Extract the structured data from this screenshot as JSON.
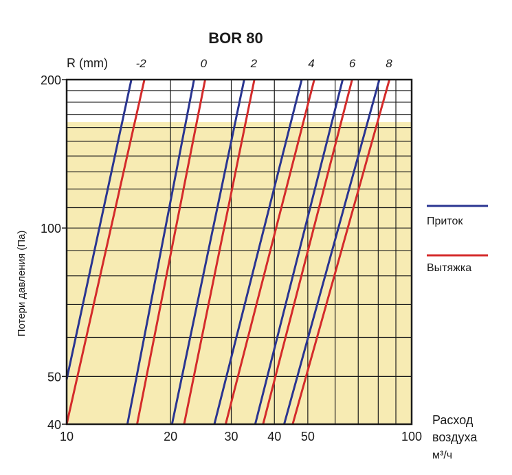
{
  "chart_data": {
    "type": "line",
    "title": "BOR 80",
    "xlabel": [
      "Расход",
      "воздуха",
      "м³/ч"
    ],
    "ylabel": "Потери давления (Па)",
    "x_scale": "log",
    "y_scale": "log",
    "xlim": [
      10,
      100
    ],
    "ylim": [
      40,
      200
    ],
    "x_ticks": [
      "10",
      "20",
      "30",
      "40",
      "50",
      "100"
    ],
    "x_tick_values": [
      10,
      20,
      30,
      40,
      50,
      100
    ],
    "y_ticks": [
      "200",
      "100",
      "50",
      "40"
    ],
    "y_tick_values": [
      200,
      100,
      50,
      40
    ],
    "grid": true,
    "highlight_region": {
      "y_range": [
        40,
        164
      ],
      "color": "#f7ebb3"
    },
    "r_axis": {
      "label": "R (mm)",
      "ticks": [
        "-2",
        "0",
        "2",
        "4",
        "6",
        "8"
      ]
    },
    "legend": {
      "position": "right",
      "entries": [
        {
          "name": "Приток",
          "color": "#2a3591"
        },
        {
          "name": "Вытяжка",
          "color": "#d42b2b"
        }
      ]
    },
    "series": [
      {
        "name": "Приток",
        "r": "-2",
        "color": "#2a3591",
        "points": [
          [
            10,
            49.3
          ],
          [
            15.4,
            200
          ]
        ]
      },
      {
        "name": "Приток",
        "r": "0",
        "color": "#2a3591",
        "points": [
          [
            15.0,
            40
          ],
          [
            23.4,
            200
          ]
        ]
      },
      {
        "name": "Приток",
        "r": "2",
        "color": "#2a3591",
        "points": [
          [
            20.2,
            40
          ],
          [
            32.7,
            200
          ]
        ]
      },
      {
        "name": "Приток",
        "r": "4",
        "color": "#2a3591",
        "points": [
          [
            26.8,
            40
          ],
          [
            48.0,
            200
          ]
        ]
      },
      {
        "name": "Приток",
        "r": "6",
        "color": "#2a3591",
        "points": [
          [
            35.2,
            40
          ],
          [
            63.1,
            200
          ]
        ]
      },
      {
        "name": "Приток",
        "r": "8",
        "color": "#2a3591",
        "points": [
          [
            42.7,
            40
          ],
          [
            80.6,
            200
          ]
        ]
      },
      {
        "name": "Вытяжка",
        "r": "-2",
        "color": "#d42b2b",
        "points": [
          [
            10,
            40
          ],
          [
            16.8,
            200
          ]
        ]
      },
      {
        "name": "Вытяжка",
        "r": "0",
        "color": "#d42b2b",
        "points": [
          [
            16.0,
            40
          ],
          [
            25.2,
            200
          ]
        ]
      },
      {
        "name": "Вытяжка",
        "r": "2",
        "color": "#d42b2b",
        "points": [
          [
            21.9,
            40
          ],
          [
            35.0,
            200
          ]
        ]
      },
      {
        "name": "Вытяжка",
        "r": "4",
        "color": "#d42b2b",
        "points": [
          [
            28.9,
            40
          ],
          [
            52.2,
            200
          ]
        ]
      },
      {
        "name": "Вытяжка",
        "r": "6",
        "color": "#d42b2b",
        "points": [
          [
            37.1,
            40
          ],
          [
            67.2,
            200
          ]
        ]
      },
      {
        "name": "Вытяжка",
        "r": "8",
        "color": "#d42b2b",
        "points": [
          [
            45.2,
            40
          ],
          [
            86.2,
            200
          ]
        ]
      }
    ]
  }
}
